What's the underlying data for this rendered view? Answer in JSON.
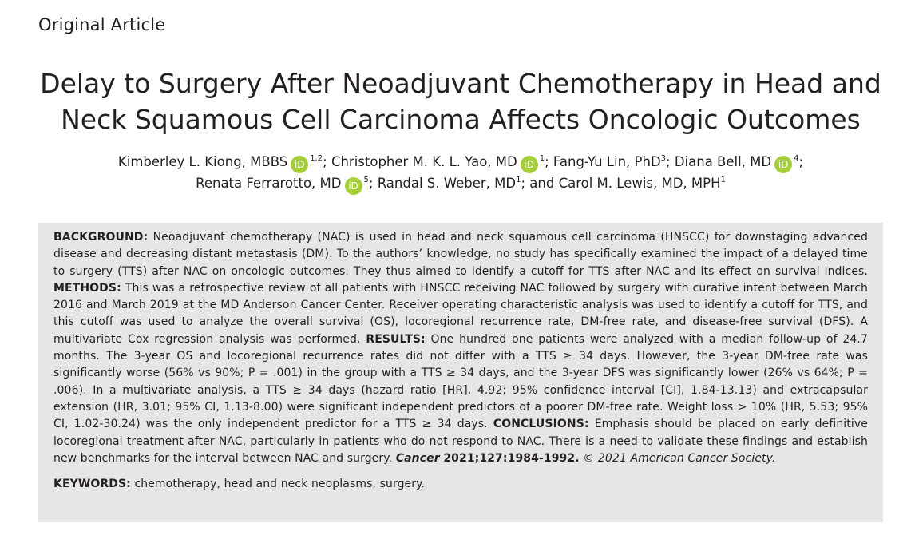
{
  "section_label": "Original Article",
  "title": {
    "line1": "Delay to Surgery After Neoadjuvant Chemotherapy in Head and",
    "line2": "Neck Squamous Cell Carcinoma Affects Oncologic Outcomes"
  },
  "authors": [
    {
      "name": "Kimberley L. Kiong, MBBS",
      "orcid": true,
      "sup": "1,2",
      "sep": ";"
    },
    {
      "name": "Christopher M. K. L. Yao, MD",
      "orcid": true,
      "sup": "1",
      "sep": ";"
    },
    {
      "name": "Fang-Yu Lin, PhD",
      "orcid": false,
      "sup": "3",
      "sep": ";"
    },
    {
      "name": "Diana Bell, MD",
      "orcid": true,
      "sup": "4",
      "sep": ";"
    },
    {
      "name": "Renata Ferrarotto, MD",
      "orcid": true,
      "sup": "5",
      "sep": ";"
    },
    {
      "name": "Randal S. Weber, MD",
      "orcid": false,
      "sup": "1",
      "sep": "; and"
    },
    {
      "name": "Carol M. Lewis, MD, MPH",
      "orcid": false,
      "sup": "1",
      "sep": ""
    }
  ],
  "orcid_icon_text": "iD",
  "abstract": {
    "background_label": "BACKGROUND:",
    "background_text": "Neoadjuvant chemotherapy (NAC) is used in head and neck squamous cell carcinoma (HNSCC) for downstaging advanced disease and decreasing distant metastasis (DM). To the authors’ knowledge, no study has specifically examined the impact of a delayed time to surgery (TTS) after NAC on oncologic outcomes. They thus aimed to identify a cutoff for TTS after NAC and its effect on survival indices.",
    "methods_label": "METHODS:",
    "methods_text": "This was a retrospective review of all patients with HNSCC receiving NAC followed by surgery with curative intent between March 2016 and March 2019 at the MD Anderson Cancer Center. Receiver operating characteristic analysis was used to identify a cutoff for TTS, and this cutoff was used to analyze the overall survival (OS), locoregional recurrence rate, DM-free rate, and disease-free survival (DFS). A multivariate Cox regression analysis was performed.",
    "results_label": "RESULTS:",
    "results_text": "One hundred one patients were analyzed with a median follow-up of 24.7 months. The 3-year OS and locoregional recurrence rates did not differ with a TTS ≥ 34 days. However, the 3-year DM-free rate was significantly worse (56% vs 90%; P = .001) in the group with a TTS ≥ 34 days, and the 3-year DFS was significantly lower (26% vs 64%; P = .006). In a multivariate analysis, a TTS ≥ 34 days (hazard ratio [HR], 4.92; 95% confidence interval [CI], 1.84-13.13) and extracapsular extension (HR, 3.01; 95% CI, 1.13-8.00) were significant independent predictors of a poorer DM-free rate. Weight loss > 10% (HR, 5.53; 95% CI, 1.02-30.24) was the only independent predictor for a TTS ≥ 34 days.",
    "conclusions_label": "CONCLUSIONS:",
    "conclusions_text": "Emphasis should be placed on early definitive locoregional treatment after NAC, particularly in patients who do not respond to NAC. There is a need to validate these findings and establish new benchmarks for the interval between NAC and surgery.",
    "citation_journal": "Cancer",
    "citation_details": "2021;127:1984-1992.",
    "copyright": "© 2021 American Cancer Society."
  },
  "keywords": {
    "label": "KEYWORDS:",
    "text": "chemotherapy, head and neck neoplasms, surgery."
  }
}
